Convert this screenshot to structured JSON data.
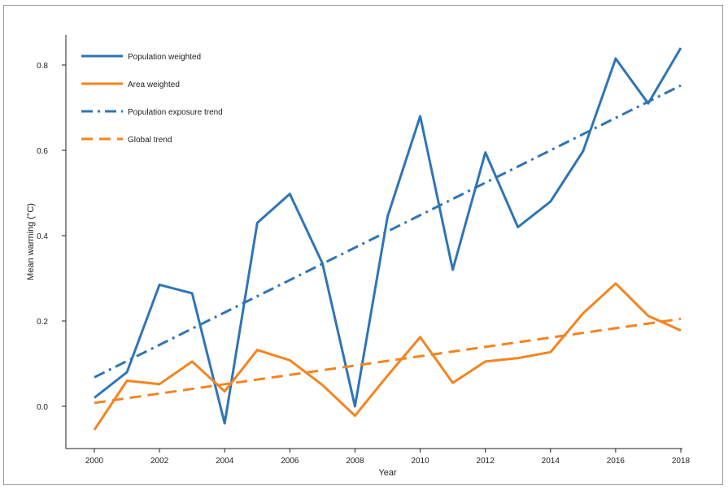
{
  "chart_data": {
    "type": "line",
    "title": "",
    "xlabel": "Year",
    "ylabel": "Mean warming (°C)",
    "xlim": [
      2000,
      2018
    ],
    "ylim": [
      -0.1,
      0.87
    ],
    "x_ticks": [
      2000,
      2002,
      2004,
      2006,
      2008,
      2010,
      2012,
      2014,
      2016,
      2018
    ],
    "y_ticks": [
      0.0,
      0.2,
      0.4,
      0.6,
      0.8
    ],
    "y_tick_labels": [
      "0.0",
      "0.2",
      "0.4",
      "0.6",
      "0.8"
    ],
    "grid": false,
    "legend_position": "top-left",
    "x": [
      2000,
      2001,
      2002,
      2003,
      2004,
      2005,
      2006,
      2007,
      2008,
      2009,
      2010,
      2011,
      2012,
      2013,
      2014,
      2015,
      2016,
      2017,
      2018
    ],
    "series": [
      {
        "name": "Population weighted",
        "style": "solid",
        "color": "#2f75b5",
        "values": [
          0.02,
          0.08,
          0.285,
          0.265,
          -0.04,
          0.43,
          0.498,
          0.335,
          0.0,
          0.445,
          0.68,
          0.32,
          0.595,
          0.42,
          0.48,
          0.598,
          0.815,
          0.71,
          0.84
        ]
      },
      {
        "name": "Area weighted",
        "style": "solid",
        "color": "#f5841f",
        "values": [
          -0.055,
          0.06,
          0.052,
          0.105,
          0.035,
          0.132,
          0.108,
          0.05,
          -0.022,
          0.072,
          0.162,
          0.055,
          0.105,
          0.113,
          0.127,
          0.218,
          0.288,
          0.212,
          0.178
        ]
      },
      {
        "name": "Population exposure trend",
        "style": "dashdot",
        "color": "#2f75b5",
        "x": [
          2000,
          2018
        ],
        "values": [
          0.068,
          0.752
        ]
      },
      {
        "name": "Global trend",
        "style": "dashed",
        "color": "#f5841f",
        "x": [
          2000,
          2018
        ],
        "values": [
          0.008,
          0.205
        ]
      }
    ]
  }
}
